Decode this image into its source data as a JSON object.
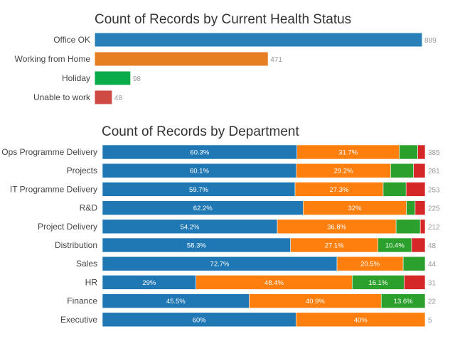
{
  "chart_data": [
    {
      "type": "bar",
      "orientation": "horizontal",
      "title": "Count of Records by Current Health Status",
      "categories": [
        "Office OK",
        "Working from Home",
        "Holiday",
        "Unable to work"
      ],
      "values": [
        889,
        471,
        98,
        48
      ],
      "colors": [
        "#2980b9",
        "#e67e22",
        "#0aab4a",
        "#d04a44"
      ],
      "xlim": [
        0,
        889
      ],
      "grid": false,
      "legend": "none"
    },
    {
      "type": "bar",
      "orientation": "horizontal",
      "stacked": "percent",
      "title": "Count of Records by Department",
      "series_names": [
        "Office OK",
        "Working from Home",
        "Holiday",
        "Unable to work"
      ],
      "series_colors": [
        "#1f77b4",
        "#ff7f0e",
        "#2ca02c",
        "#d62728"
      ],
      "categories": [
        "Ops Programme Delivery",
        "Projects",
        "IT Programme Delivery",
        "R&D",
        "Project Delivery",
        "Distribution",
        "Sales",
        "HR",
        "Finance",
        "Executive"
      ],
      "totals": [
        385,
        281,
        253,
        225,
        212,
        48,
        44,
        31,
        22,
        5
      ],
      "series": [
        {
          "name": "Office OK",
          "values": [
            60.3,
            60.1,
            59.7,
            62.2,
            54.2,
            58.3,
            72.7,
            29,
            45.5,
            60
          ],
          "labels": [
            "60.3%",
            "60.1%",
            "59.7%",
            "62.2%",
            "54.2%",
            "58.3%",
            "72.7%",
            "29%",
            "45.5%",
            "60%"
          ]
        },
        {
          "name": "Working from Home",
          "values": [
            31.7,
            29.2,
            27.3,
            32,
            36.8,
            27.1,
            20.5,
            48.4,
            40.9,
            40
          ],
          "labels": [
            "31.7%",
            "29.2%",
            "27.3%",
            "32%",
            "36.8%",
            "27.1%",
            "20.5%",
            "48.4%",
            "40.9%",
            "40%"
          ]
        },
        {
          "name": "Holiday",
          "values": [
            5.7,
            7.1,
            7.1,
            2.7,
            7.5,
            10.4,
            6.8,
            16.1,
            13.6,
            0
          ],
          "labels": [
            "",
            "",
            "",
            "",
            "",
            "10.4%",
            "",
            "16.1%",
            "13.6%",
            ""
          ]
        },
        {
          "name": "Unable to work",
          "values": [
            2.3,
            3.6,
            5.9,
            3.1,
            1.5,
            4.2,
            0,
            6.5,
            0,
            0
          ],
          "labels": [
            "",
            "",
            "",
            "",
            "",
            "",
            "",
            "",
            "",
            ""
          ]
        }
      ],
      "xlim": [
        0,
        100
      ],
      "grid": false,
      "legend": "none"
    }
  ]
}
